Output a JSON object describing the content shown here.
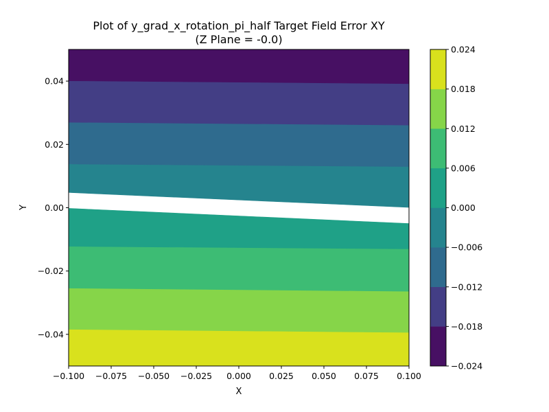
{
  "chart_data": {
    "type": "contour",
    "title": "Plot of y_grad_x_rotation_pi_half Target Field Error XY",
    "subtitle": "(Z Plane = -0.0)",
    "xlabel": "X",
    "ylabel": "Y",
    "xlim": [
      -0.1,
      0.1
    ],
    "ylim": [
      -0.05,
      0.05
    ],
    "x_ticks": [
      -0.1,
      -0.075,
      -0.05,
      -0.025,
      0.0,
      0.025,
      0.05,
      0.075,
      0.1
    ],
    "x_tick_labels": [
      "−0.100",
      "−0.075",
      "−0.050",
      "−0.025",
      "0.000",
      "0.025",
      "0.050",
      "0.075",
      "0.100"
    ],
    "y_ticks": [
      0.04,
      0.02,
      0.0,
      -0.02,
      -0.04
    ],
    "y_tick_labels": [
      "0.04",
      "0.02",
      "0.00",
      "−0.02",
      "−0.04"
    ],
    "colorbar": {
      "levels": [
        -0.024,
        -0.018,
        -0.012,
        -0.006,
        0.0,
        0.006,
        0.012,
        0.018,
        0.024
      ],
      "tick_labels": [
        "−0.024",
        "−0.018",
        "−0.012",
        "−0.006",
        "0.000",
        "0.006",
        "0.012",
        "0.018",
        "0.024"
      ],
      "colors": [
        "#471063",
        "#433e85",
        "#2f6b8e",
        "#25848e",
        "#1fa187",
        "#3dbc74",
        "#86d549",
        "#d9e11d"
      ]
    },
    "bands": [
      {
        "level": [
          0.018,
          0.024
        ],
        "color": "#d9e11d",
        "y_top_left": -0.0384,
        "y_top_right": -0.0394,
        "y_bottom_left": -0.05,
        "y_bottom_right": -0.05
      },
      {
        "level": [
          0.012,
          0.018
        ],
        "color": "#86d549",
        "y_top_left": -0.0254,
        "y_top_right": -0.0264,
        "y_bottom_left": -0.0384,
        "y_bottom_right": -0.0394
      },
      {
        "level": [
          0.006,
          0.012
        ],
        "color": "#3dbc74",
        "y_top_left": -0.0122,
        "y_top_right": -0.013,
        "y_bottom_left": -0.0254,
        "y_bottom_right": -0.0264
      },
      {
        "level": [
          0.0,
          0.006
        ],
        "color": "#1fa187",
        "y_top_left": -0.0002,
        "y_top_right": -0.005,
        "y_bottom_left": -0.0122,
        "y_bottom_right": -0.013
      },
      {
        "level": [
          -0.006,
          0.0
        ],
        "color": "#25848e",
        "y_top_left": 0.0138,
        "y_top_right": 0.013,
        "y_bottom_left": 0.0048,
        "y_bottom_right": 0.0001
      },
      {
        "level": [
          -0.012,
          -0.006
        ],
        "color": "#2f6b8e",
        "y_top_left": 0.027,
        "y_top_right": 0.0261,
        "y_bottom_left": 0.0138,
        "y_bottom_right": 0.013
      },
      {
        "level": [
          -0.018,
          -0.012
        ],
        "color": "#433e85",
        "y_top_left": 0.0401,
        "y_top_right": 0.0392,
        "y_bottom_left": 0.027,
        "y_bottom_right": 0.0261
      },
      {
        "level": [
          -0.024,
          -0.018
        ],
        "color": "#471063",
        "y_top_left": 0.05,
        "y_top_right": 0.05,
        "y_bottom_left": 0.0401,
        "y_bottom_right": 0.0392
      }
    ]
  }
}
